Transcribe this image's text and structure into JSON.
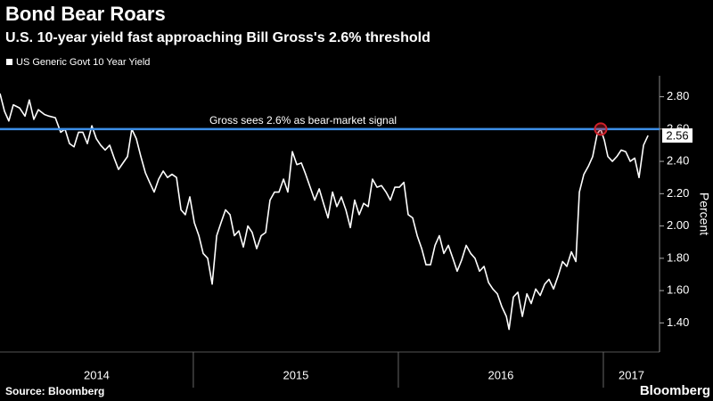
{
  "chart_data": {
    "type": "line",
    "title": "Bond Bear Roars",
    "subtitle": "U.S. 10-year yield fast approaching Bill Gross's 2.6% threshold",
    "y_label": "Percent",
    "source": "Source: Bloomberg",
    "brand": "Bloomberg",
    "xlim": [
      2014.057,
      2017.274
    ],
    "xticks": [
      2015,
      2016,
      2017
    ],
    "year_labels": [
      "2014",
      "2015",
      "2016",
      "2017"
    ],
    "ylim": [
      1.22,
      2.93
    ],
    "yticks": [
      {
        "value": 1.4,
        "label": "1.40"
      },
      {
        "value": 1.6,
        "label": "1.60"
      },
      {
        "value": 1.8,
        "label": "1.80"
      },
      {
        "value": 2.0,
        "label": "2.00"
      },
      {
        "value": 2.2,
        "label": "2.20"
      },
      {
        "value": 2.4,
        "label": "2.40"
      },
      {
        "value": 2.6,
        "label": "2.60"
      },
      {
        "value": 2.8,
        "label": "2.80"
      }
    ],
    "threshold": {
      "value": 2.6,
      "label": "Gross sees 2.6% as bear-market signal",
      "color": "#3d8fe8"
    },
    "highlight_color": "#d0202a",
    "series": [
      {
        "name": "US Generic Govt 10 Year Yield",
        "color": "#ffffff",
        "x": [
          2014.057,
          2014.079,
          2014.1,
          2014.122,
          2014.153,
          2014.179,
          2014.2,
          2014.222,
          2014.244,
          2014.274,
          2014.296,
          2014.327,
          2014.353,
          2014.374,
          2014.396,
          2014.418,
          2014.44,
          2014.461,
          2014.483,
          2014.505,
          2014.527,
          2014.548,
          2014.57,
          2014.592,
          2014.614,
          2014.635,
          2014.657,
          2014.679,
          2014.7,
          2014.722,
          2014.744,
          2014.766,
          2014.787,
          2014.809,
          2014.831,
          2014.853,
          2014.874,
          2014.896,
          2014.918,
          2014.94,
          2014.961,
          2014.983,
          2015.005,
          2015.027,
          2015.048,
          2015.07,
          2015.092,
          2015.114,
          2015.135,
          2015.157,
          2015.179,
          2015.2,
          2015.222,
          2015.244,
          2015.266,
          2015.287,
          2015.309,
          2015.331,
          2015.353,
          2015.374,
          2015.396,
          2015.418,
          2015.44,
          2015.461,
          2015.483,
          2015.505,
          2015.527,
          2015.548,
          2015.57,
          2015.592,
          2015.614,
          2015.635,
          2015.657,
          2015.679,
          2015.7,
          2015.722,
          2015.744,
          2015.766,
          2015.787,
          2015.809,
          2015.831,
          2015.853,
          2015.874,
          2015.896,
          2015.918,
          2015.94,
          2015.961,
          2015.983,
          2016.005,
          2016.027,
          2016.048,
          2016.07,
          2016.092,
          2016.114,
          2016.135,
          2016.157,
          2016.179,
          2016.2,
          2016.222,
          2016.244,
          2016.266,
          2016.287,
          2016.309,
          2016.331,
          2016.353,
          2016.374,
          2016.396,
          2016.418,
          2016.44,
          2016.461,
          2016.483,
          2016.505,
          2016.527,
          2016.54,
          2016.561,
          2016.583,
          2016.605,
          2016.627,
          2016.648,
          2016.67,
          2016.692,
          2016.714,
          2016.735,
          2016.757,
          2016.779,
          2016.801,
          2016.822,
          2016.844,
          2016.866,
          2016.883,
          2016.905,
          2016.927,
          2016.948,
          2016.97,
          2016.987,
          2017.005,
          2017.022,
          2017.044,
          2017.066,
          2017.087,
          2017.109,
          2017.131,
          2017.153,
          2017.174,
          2017.196,
          2017.218
        ],
        "values": [
          2.82,
          2.71,
          2.65,
          2.75,
          2.73,
          2.68,
          2.78,
          2.66,
          2.72,
          2.69,
          2.68,
          2.67,
          2.58,
          2.6,
          2.51,
          2.49,
          2.58,
          2.58,
          2.51,
          2.62,
          2.54,
          2.5,
          2.47,
          2.5,
          2.42,
          2.35,
          2.39,
          2.43,
          2.6,
          2.54,
          2.43,
          2.33,
          2.27,
          2.21,
          2.29,
          2.34,
          2.3,
          2.32,
          2.3,
          2.1,
          2.07,
          2.18,
          2.02,
          1.94,
          1.83,
          1.8,
          1.64,
          1.94,
          2.02,
          2.1,
          2.07,
          1.94,
          1.97,
          1.87,
          2.0,
          1.96,
          1.86,
          1.94,
          1.96,
          2.16,
          2.21,
          2.21,
          2.29,
          2.21,
          2.46,
          2.38,
          2.39,
          2.32,
          2.24,
          2.16,
          2.23,
          2.14,
          2.05,
          2.21,
          2.12,
          2.18,
          2.1,
          1.99,
          2.16,
          2.07,
          2.14,
          2.12,
          2.29,
          2.24,
          2.25,
          2.21,
          2.16,
          2.24,
          2.24,
          2.27,
          2.07,
          2.05,
          1.94,
          1.86,
          1.76,
          1.76,
          1.88,
          1.94,
          1.83,
          1.88,
          1.8,
          1.72,
          1.79,
          1.88,
          1.83,
          1.8,
          1.72,
          1.75,
          1.65,
          1.61,
          1.58,
          1.5,
          1.44,
          1.36,
          1.56,
          1.59,
          1.44,
          1.58,
          1.52,
          1.61,
          1.57,
          1.64,
          1.67,
          1.61,
          1.69,
          1.78,
          1.75,
          1.84,
          1.78,
          2.21,
          2.32,
          2.37,
          2.43,
          2.57,
          2.6,
          2.53,
          2.43,
          2.4,
          2.43,
          2.47,
          2.46,
          2.4,
          2.42,
          2.3,
          2.5,
          2.56
        ]
      }
    ]
  }
}
